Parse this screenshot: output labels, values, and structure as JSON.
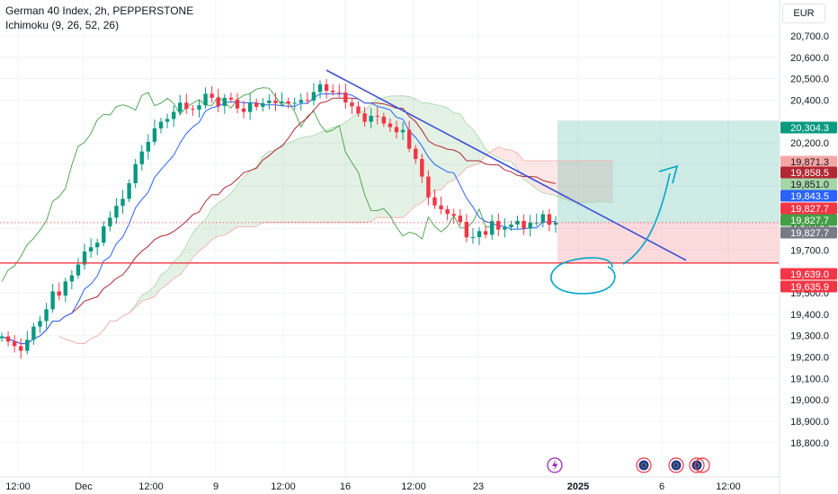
{
  "header": {
    "title": "German 40 Index, 2h, PEPPERSTONE",
    "indicator": "Ichimoku (9, 26, 52, 26)",
    "currency": "EUR"
  },
  "chart_data": {
    "type": "candlestick",
    "ylim": [
      18750,
      20800
    ],
    "y_ticks": [
      18800,
      18900,
      19000,
      19100,
      19200,
      19300,
      19400,
      19500,
      19700,
      19800,
      20000,
      20100,
      20200,
      20400,
      20500,
      20600,
      20700
    ],
    "y_tick_labels": [
      "18,800.0",
      "18,900.0",
      "19,000.0",
      "19,100.0",
      "19,200.0",
      "19,300.0",
      "19,400.0",
      "19,500.0",
      "19,700.0",
      "19,800.0",
      "20,000.0",
      "20,100.0",
      "20,200.0",
      "20,400.0",
      "20,500.0",
      "20,600.0",
      "20,700.0"
    ],
    "x_labels": [
      "12:00",
      "Dec",
      "12:00",
      "9",
      "12:00",
      "16",
      "12:00",
      "23",
      "2025",
      "6",
      "12:00"
    ],
    "price_labels": [
      {
        "text": "20,304.3",
        "value": 20304.3,
        "color": "#089981"
      },
      {
        "text": "19,871.3",
        "value": 19871.3,
        "color": "#f7a6a6"
      },
      {
        "text": "19,858.5",
        "value": 19858.5,
        "color": "#b22833"
      },
      {
        "text": "19,851.0",
        "value": 19851.0,
        "color": "#a5d6a7"
      },
      {
        "text": "19,843.5",
        "value": 19843.5,
        "color": "#2962ff"
      },
      {
        "text": "19,827.7",
        "value": 19827.7,
        "color": "#f23645"
      },
      {
        "text": "19,827.7",
        "value": 19827.7,
        "color": "#43a047"
      },
      {
        "text": "19,827.7",
        "value": 19827.7,
        "color": "#787b86"
      },
      {
        "text": "19,639.0",
        "value": 19639.0,
        "color": "#f23645"
      },
      {
        "text": "19,635.9",
        "value": 19635.9,
        "color": "#f23645"
      }
    ],
    "support_level": 19639.0,
    "last_price": 19827.7,
    "trendline": {
      "start": [
        363,
        20540
      ],
      "end": [
        763,
        19652
      ]
    },
    "position": {
      "entry": 19827.7,
      "target": 20304.3,
      "stop": 19635.9,
      "x_start": 620,
      "x_end": 867
    },
    "series": [
      {
        "name": "price",
        "values": [
          19296,
          19272,
          19251,
          19229,
          19280,
          19342,
          19368,
          19423,
          19506,
          19487,
          19553,
          19581,
          19632,
          19693,
          19713,
          19734,
          19810,
          19851,
          19906,
          19939,
          20012,
          20101,
          20160,
          20205,
          20268,
          20299,
          20312,
          20345,
          20388,
          20359,
          20356,
          20376,
          20430,
          20411,
          20373,
          20411,
          20403,
          20361,
          20345,
          20388,
          20369,
          20386,
          20398,
          20386,
          20394,
          20384,
          20388,
          20401,
          20398,
          20438,
          20474,
          20444,
          20437,
          20435,
          20389,
          20371,
          20338,
          20299,
          20327,
          20323,
          20291,
          20274,
          20250,
          20261,
          20173,
          20125,
          20043,
          19946,
          19908,
          19890,
          19868,
          19860,
          19831,
          19759,
          19760,
          19788,
          19771,
          19835,
          19795,
          19806,
          19819,
          19836,
          19800,
          19828,
          19828,
          19867,
          19818,
          19828
        ]
      }
    ]
  }
}
